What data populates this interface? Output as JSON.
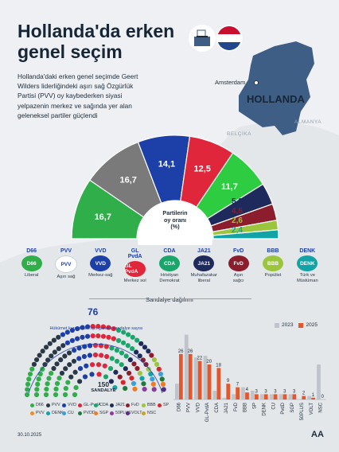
{
  "header": {
    "title_line1": "Hollanda'da erken",
    "title_line2": "genel seçim"
  },
  "intro_text": "Hollanda'daki erken genel seçimde Geert Wilders liderliğindeki aşırı sağ Özgürlük Partisi (PVV) oy kaybederken siyasi yelpazenin merkez ve sağında yer alan geleneksel partiler güçlendi",
  "map": {
    "city": "Amsterdam",
    "country": "HOLLANDA",
    "neighbor_1": "BELÇİKA",
    "neighbor_2": "ALMANYA"
  },
  "semicircle": {
    "center_label": "Partilerin\noy oranı\n(%)"
  },
  "parties": [
    {
      "abbr": "D66",
      "logo_text": "D66",
      "desc": "Liberal",
      "color": "#2fae4a"
    },
    {
      "abbr": "PVV",
      "logo_text": "PVV",
      "desc": "Aşırı sağ",
      "color": "#ffffff"
    },
    {
      "abbr": "VVD",
      "logo_text": "VVD",
      "desc": "Merkez-sağ",
      "color": "#1d3fa8"
    },
    {
      "abbr": "GL\nPvdA",
      "logo_text": "GL PvdA",
      "desc": "Merkez sol",
      "color": "#e0263a"
    },
    {
      "abbr": "CDA",
      "logo_text": "CDA",
      "desc": "Hristiyan\nDemokrat",
      "color": "#1aa66b"
    },
    {
      "abbr": "JA21",
      "logo_text": "JA21",
      "desc": "Muhafazakar\nliberal",
      "color": "#1f2a5c"
    },
    {
      "abbr": "FvD",
      "logo_text": "FvD",
      "desc": "Aşırı\nsağcı",
      "color": "#8b1d2c"
    },
    {
      "abbr": "BBB",
      "logo_text": "BBB",
      "desc": "Popülist",
      "color": "#9bc53d"
    },
    {
      "abbr": "DENK",
      "logo_text": "DENK",
      "desc": "Türk ve\nMüslüman",
      "color": "#11a3a6"
    }
  ],
  "seats": {
    "section_title": "Sandalye dağılımı",
    "majority_number": "76",
    "majority_label": "Hükümet kurabilmek için gerekli sandalye sayısı",
    "total_number": "150",
    "total_label": "SANDALYE"
  },
  "parliament_legend": [
    {
      "name": "D66",
      "color": "#2fae4a"
    },
    {
      "name": "PVV",
      "color": "#2a3846"
    },
    {
      "name": "VVD",
      "color": "#1d3fa8"
    },
    {
      "name": "GL-PvdA",
      "color": "#e0263a"
    },
    {
      "name": "CDA",
      "color": "#1aa66b"
    },
    {
      "name": "JA21",
      "color": "#1f2a5c"
    },
    {
      "name": "FvD",
      "color": "#8b1d2c"
    },
    {
      "name": "BBB",
      "color": "#9bc53d"
    },
    {
      "name": "SP",
      "color": "#d9262c"
    },
    {
      "name": "PVV",
      "color": "#f28c28"
    },
    {
      "name": "DENK",
      "color": "#11a3a6"
    },
    {
      "name": "CU",
      "color": "#3aa0dc"
    },
    {
      "name": "PVDD",
      "color": "#1f7a3c"
    },
    {
      "name": "SGP",
      "color": "#ee7d22"
    },
    {
      "name": "50PLUS",
      "color": "#8e3ba0"
    },
    {
      "name": "VOLT",
      "color": "#5b2a86"
    },
    {
      "name": "NSC",
      "color": "#c9a227"
    }
  ],
  "footer": {
    "date": "30.10.2025",
    "logo": "AA"
  },
  "chart_data": [
    {
      "type": "pie",
      "title": "Partilerin oy oranı (%)",
      "categories": [
        "D66",
        "PVV",
        "VVD",
        "GL-PvdA",
        "CDA",
        "JA21",
        "FvD",
        "BBB",
        "DENK"
      ],
      "values": [
        16.7,
        16.7,
        14.1,
        12.5,
        11.7,
        5.9,
        4.5,
        2.6,
        2.4
      ],
      "labels": [
        "16,7",
        "16,7",
        "14,1",
        "12,5",
        "11,7",
        "5,9",
        "4,5",
        "2,6",
        "2,4"
      ],
      "colors": [
        "#2fae4a",
        "#7a7a7a",
        "#1d3fa8",
        "#e0263a",
        "#2ecc40",
        "#1f2a5c",
        "#8b1d2c",
        "#9bc53d",
        "#11a3a6"
      ]
    },
    {
      "type": "bar",
      "categories": [
        "D66",
        "PVV",
        "VVD",
        "GL-PvdA",
        "CDA",
        "JA21",
        "FvD",
        "BBB",
        "SP",
        "DENK",
        "CU",
        "PvdD",
        "SGP",
        "50PLUS",
        "VOLT",
        "NSC"
      ],
      "series": [
        {
          "name": "2023",
          "values": [
            9,
            37,
            24,
            25,
            5,
            1,
            3,
            7,
            5,
            3,
            3,
            3,
            3,
            0,
            2,
            20
          ],
          "color": "#bfc4ca"
        },
        {
          "name": "2025",
          "values": [
            26,
            26,
            22,
            20,
            18,
            9,
            7,
            4,
            3,
            3,
            3,
            3,
            3,
            2,
            1,
            0
          ],
          "color": "#e5562b"
        }
      ],
      "labels_2025": [
        "26",
        "26",
        "22",
        "20",
        "18",
        "9",
        "7",
        "4",
        "3",
        "3",
        "3",
        "3",
        "3",
        "2",
        "1",
        "0"
      ],
      "ylim": [
        0,
        40
      ]
    }
  ]
}
